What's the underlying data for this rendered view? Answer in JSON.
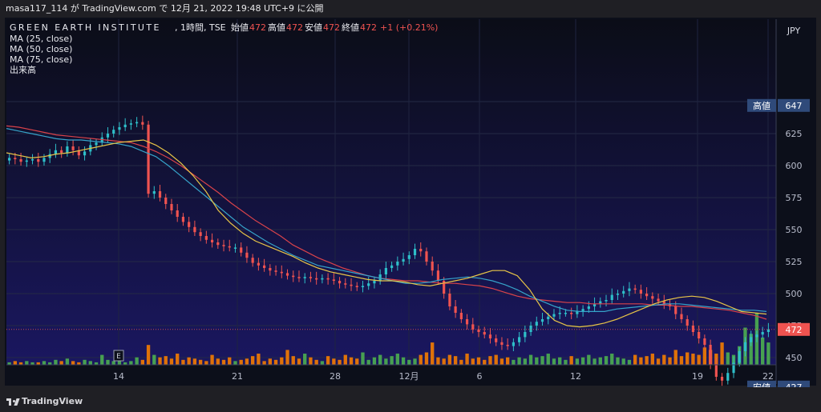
{
  "header": {
    "attribution": "masa117_114 が TradingView.com で 12月 21, 2022 19:48 UTC+9 に公開"
  },
  "legend": {
    "symbol": "GREEN EARTH INSTITUTE",
    "interval": ", 1時間, TSE",
    "ohlc": [
      {
        "label": "始値",
        "value": "472"
      },
      {
        "label": "高値",
        "value": "472"
      },
      {
        "label": "安値",
        "value": "472"
      },
      {
        "label": "終値",
        "value": "472"
      }
    ],
    "change": "+1 (+0.21%)",
    "indicators": [
      "MA (25, close)",
      "MA (50, close)",
      "MA (75, close)",
      "出来高"
    ]
  },
  "footer": {
    "brand": "TradingView"
  },
  "colors": {
    "up": "#2ebfc9",
    "down": "#ef5350",
    "vol_up": "#4caf50",
    "vol_down": "#f57c00",
    "ma25": "#e8c547",
    "ma50": "#36a3c9",
    "ma75": "#d9434a",
    "label_bg": "#2f4a7a",
    "last_bg": "#ef5350"
  },
  "chart_data": {
    "type": "candlestick",
    "currency": "JPY",
    "y_ticks": [
      450,
      475,
      500,
      525,
      550,
      575,
      600,
      625,
      650
    ],
    "x_ticks": [
      "14",
      "21",
      "28",
      "12月",
      "6",
      "12",
      "19",
      "22"
    ],
    "price_labels": [
      {
        "label": "高値",
        "value": "647"
      },
      {
        "label": "",
        "value": "472",
        "last": true
      },
      {
        "label": "安値",
        "value": "427"
      }
    ],
    "event_marker": "E",
    "close_series": [
      606,
      605,
      603,
      604,
      605,
      603,
      606,
      609,
      612,
      610,
      615,
      612,
      608,
      611,
      616,
      618,
      622,
      625,
      628,
      630,
      632,
      633,
      634,
      632,
      578,
      580,
      575,
      570,
      565,
      560,
      556,
      552,
      548,
      545,
      542,
      540,
      538,
      537,
      536,
      536,
      532,
      528,
      524,
      522,
      520,
      518,
      517,
      516,
      514,
      513,
      512,
      513,
      512,
      511,
      512,
      511,
      510,
      508,
      507,
      506,
      505,
      506,
      508,
      510,
      515,
      520,
      522,
      525,
      527,
      530,
      535,
      533,
      525,
      518,
      510,
      500,
      490,
      485,
      480,
      476,
      472,
      470,
      468,
      465,
      462,
      460,
      459,
      462,
      466,
      470,
      475,
      478,
      480,
      482,
      484,
      485,
      485,
      484,
      486,
      488,
      490,
      492,
      494,
      495,
      499,
      500,
      502,
      504,
      503,
      500,
      498,
      496,
      494,
      492,
      490,
      484,
      480,
      475,
      470,
      465,
      460,
      445,
      435,
      432,
      438,
      446,
      455,
      462,
      466,
      468,
      470,
      472
    ],
    "ma25": [
      610,
      608,
      606,
      607,
      609,
      610,
      612,
      614,
      616,
      618,
      619,
      620,
      616,
      610,
      602,
      592,
      580,
      565,
      555,
      547,
      541,
      537,
      533,
      529,
      524,
      520,
      517,
      515,
      513,
      511,
      510,
      510,
      509,
      507,
      506,
      508,
      510,
      512,
      515,
      518,
      518,
      514,
      503,
      488,
      479,
      475,
      474,
      475,
      477,
      480,
      484,
      488,
      492,
      495,
      497,
      498,
      497,
      494,
      490,
      486,
      485,
      484
    ],
    "ma50": [
      629,
      627,
      625,
      623,
      621,
      620,
      620,
      619,
      618,
      617,
      615,
      611,
      607,
      600,
      592,
      584,
      576,
      568,
      560,
      552,
      546,
      540,
      535,
      530,
      526,
      522,
      520,
      518,
      516,
      514,
      512,
      510,
      508,
      508,
      509,
      511,
      512,
      513,
      512,
      510,
      507,
      503,
      498,
      494,
      490,
      487,
      486,
      486,
      486,
      488,
      489,
      490,
      491,
      492,
      492,
      491,
      490,
      489,
      488,
      487,
      487,
      486
    ],
    "ma75": [
      631,
      630,
      628,
      626,
      624,
      623,
      622,
      621,
      620,
      619,
      618,
      615,
      611,
      606,
      600,
      593,
      586,
      579,
      571,
      564,
      557,
      551,
      545,
      538,
      533,
      528,
      524,
      520,
      517,
      514,
      512,
      511,
      510,
      510,
      509,
      508,
      508,
      507,
      506,
      504,
      501,
      498,
      496,
      495,
      494,
      493,
      493,
      492,
      492,
      492,
      492,
      492,
      491,
      491,
      490,
      490,
      489,
      488,
      487,
      485,
      483,
      480
    ],
    "volumes": [
      2,
      3,
      2,
      3,
      2,
      2,
      3,
      2,
      4,
      3,
      5,
      3,
      2,
      4,
      3,
      2,
      8,
      4,
      3,
      5,
      2,
      3,
      6,
      4,
      16,
      8,
      6,
      7,
      5,
      9,
      4,
      6,
      5,
      4,
      3,
      8,
      5,
      4,
      6,
      3,
      4,
      5,
      7,
      9,
      3,
      5,
      4,
      6,
      12,
      7,
      5,
      9,
      6,
      4,
      3,
      7,
      5,
      4,
      8,
      6,
      5,
      10,
      4,
      6,
      8,
      5,
      7,
      9,
      6,
      4,
      5,
      8,
      10,
      18,
      6,
      5,
      8,
      7,
      4,
      9,
      5,
      6,
      4,
      7,
      8,
      5,
      6,
      4,
      6,
      5,
      8,
      6,
      7,
      9,
      5,
      6,
      4,
      7,
      5,
      6,
      8,
      5,
      6,
      7,
      9,
      6,
      5,
      4,
      8,
      6,
      7,
      9,
      5,
      8,
      6,
      12,
      7,
      10,
      9,
      8,
      14,
      12,
      9,
      18,
      10,
      8,
      15,
      30,
      25,
      42,
      22,
      18
    ]
  }
}
